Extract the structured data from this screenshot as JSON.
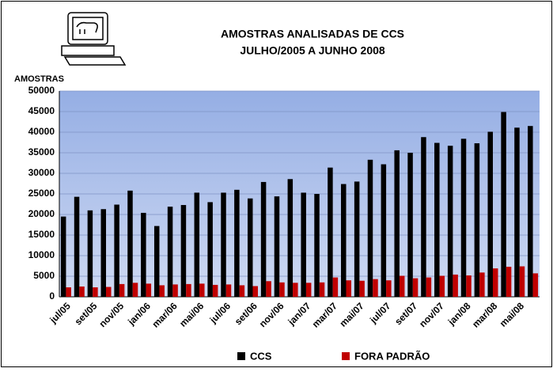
{
  "chart_data": {
    "type": "bar",
    "title": "AMOSTRAS ANALISADAS DE CCS",
    "subtitle": "JULHO/2005 A JUNHO 2008",
    "y_label": "AMOSTRAS",
    "categories": [
      "jul/05",
      null,
      "set/05",
      null,
      "nov/05",
      null,
      "jan/06",
      null,
      "mar/06",
      null,
      "mai/06",
      null,
      "jul/06",
      null,
      "set/06",
      null,
      "nov/06",
      null,
      "jan/07",
      null,
      "mar/07",
      null,
      "mai/07",
      null,
      "jul/07",
      null,
      "set/07",
      null,
      "nov/07",
      null,
      "jan/08",
      null,
      "mar/08",
      null,
      "mai/08",
      null
    ],
    "series": [
      {
        "name": "CCS",
        "color": "#000000",
        "values": [
          19500,
          24300,
          21000,
          21300,
          22400,
          25800,
          20400,
          17200,
          21900,
          22300,
          25300,
          23000,
          25300,
          26000,
          23900,
          27900,
          24400,
          28600,
          25300,
          25000,
          31400,
          27400,
          28000,
          33300,
          32200,
          35600,
          35000,
          38800,
          37400,
          36700,
          38400,
          37300,
          40100,
          44900,
          41100,
          41500
        ]
      },
      {
        "name": "FORA PADRÃO",
        "color": "#c00000",
        "values": [
          2300,
          2500,
          2300,
          2400,
          3100,
          3400,
          3200,
          2800,
          3000,
          3100,
          3200,
          2900,
          3000,
          2800,
          2600,
          3800,
          3500,
          3400,
          3400,
          3500,
          4700,
          4000,
          3900,
          4300,
          4000,
          5100,
          4500,
          4700,
          5100,
          5400,
          5200,
          5900,
          6900,
          7300,
          7400,
          5700
        ]
      }
    ],
    "ylim": [
      0,
      50000
    ],
    "yticks": [
      0,
      5000,
      10000,
      15000,
      20000,
      25000,
      30000,
      35000,
      40000,
      45000,
      50000
    ],
    "grid": true,
    "legend": "bottom"
  }
}
